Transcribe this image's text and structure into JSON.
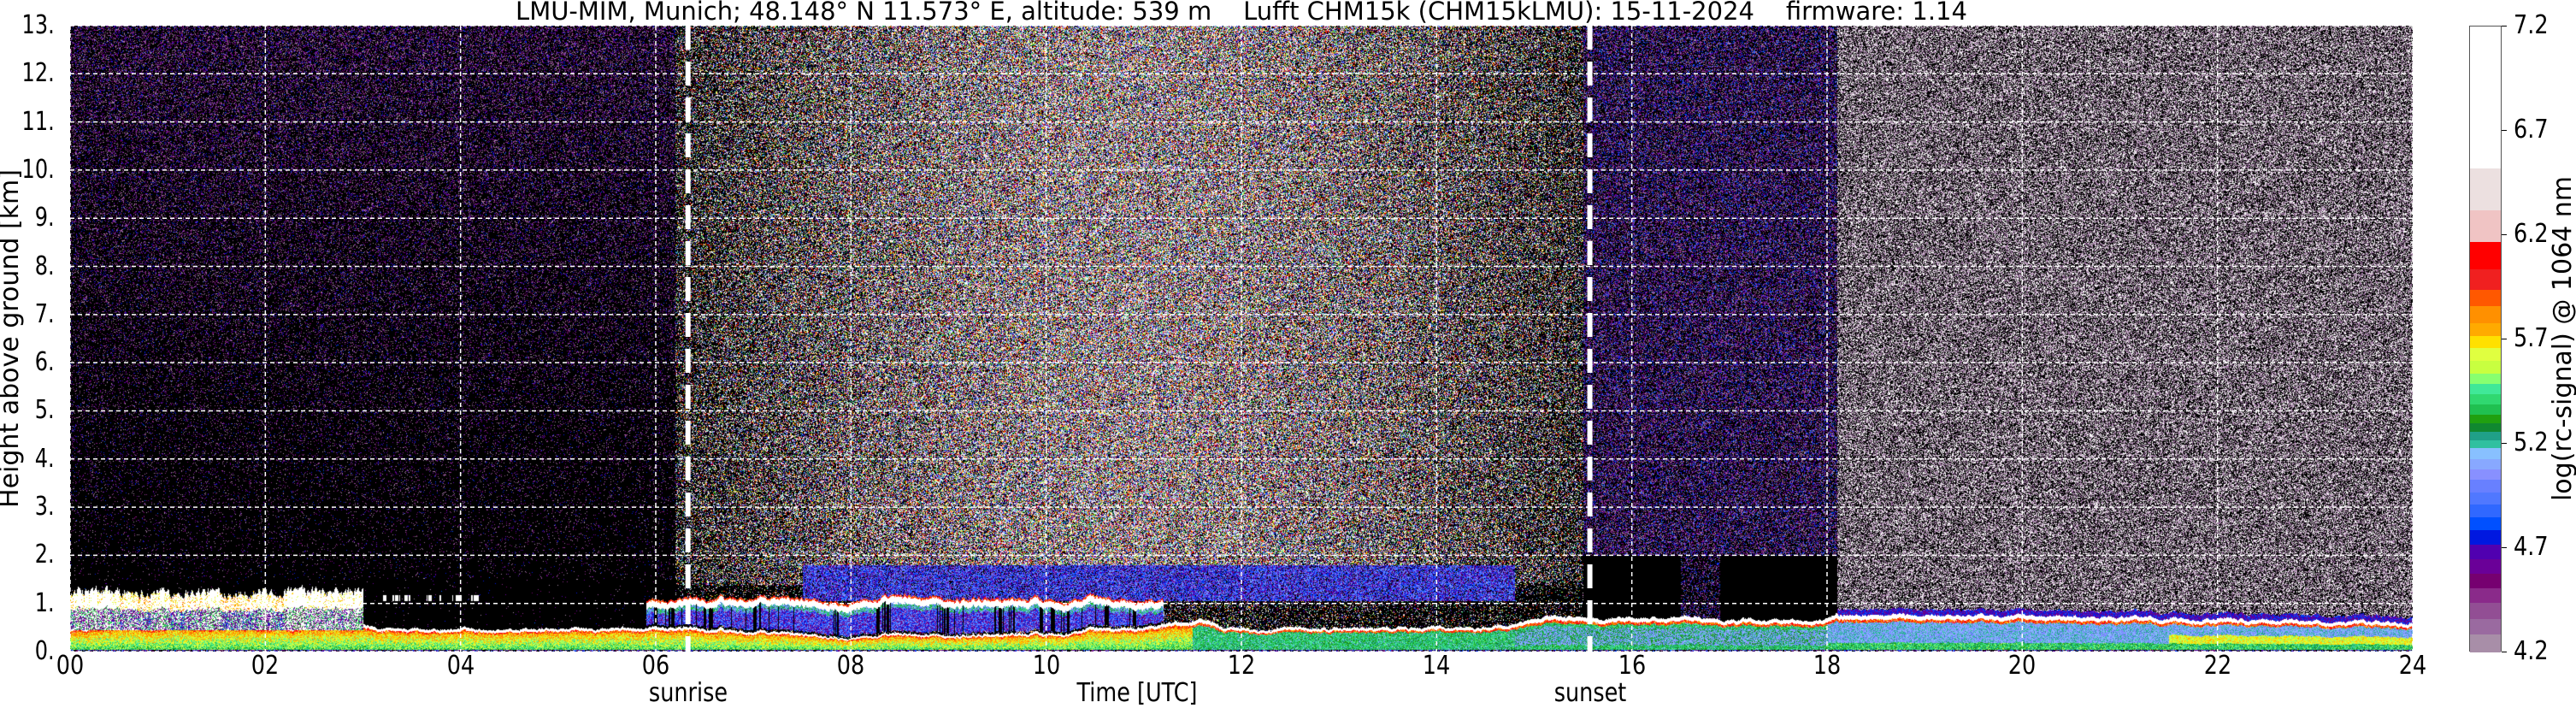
{
  "chart_data": {
    "type": "heatmap",
    "title": "LMU-MIM, Munich; 48.148° N 11.573° E, altitude: 539 m    Lufft CHM15k (CHM15kLMU): 15-11-2024    firmware: 1.14",
    "xlabel": "Time [UTC]",
    "ylabel": "Height above ground [km]",
    "xlim": [
      0,
      24
    ],
    "ylim": [
      0,
      13
    ],
    "xticks": [
      0,
      2,
      4,
      6,
      8,
      10,
      12,
      14,
      16,
      18,
      20,
      22,
      24
    ],
    "xtick_labels": [
      "00",
      "02",
      "04",
      "06",
      "08",
      "10",
      "12",
      "14",
      "16",
      "18",
      "20",
      "22",
      "24"
    ],
    "yticks": [
      0,
      1,
      2,
      3,
      4,
      5,
      6,
      7,
      8,
      9,
      10,
      11,
      12,
      13
    ],
    "ytick_labels": [
      "0.",
      "1.",
      "2.",
      "3.",
      "4.",
      "5.",
      "6.",
      "7.",
      "8.",
      "9.",
      "10.",
      "11.",
      "12.",
      "13."
    ],
    "grid": true,
    "annotations": [
      {
        "label": "sunrise",
        "time": 6.33
      },
      {
        "label": "sunset",
        "time": 15.57
      }
    ],
    "colorbar": {
      "label": "log(rc-signal) @ 1064 nm",
      "range": [
        4.2,
        7.2
      ],
      "ticks": [
        "4.2",
        "4.7",
        "5.2",
        "5.7",
        "6.2",
        "6.7",
        "7.2"
      ],
      "levels": [
        4.2,
        4.29,
        4.36,
        4.44,
        4.51,
        4.58,
        4.65,
        4.72,
        4.79,
        4.85,
        4.91,
        4.97,
        5.03,
        5.08,
        5.13,
        5.18,
        5.22,
        5.26,
        5.3,
        5.34,
        5.39,
        5.44,
        5.49,
        5.54,
        5.6,
        5.66,
        5.72,
        5.78,
        5.86,
        5.94,
        6.04,
        6.17,
        6.32,
        6.52,
        7.2
      ],
      "colors": [
        "#a88ea8",
        "#9a6aa0",
        "#924e94",
        "#8a2a8a",
        "#760070",
        "#6a0098",
        "#5000b0",
        "#0018e0",
        "#0050ff",
        "#3068ff",
        "#5078ff",
        "#6880ff",
        "#8890ff",
        "#88a8ff",
        "#88c0ff",
        "#30c0a0",
        "#20a088",
        "#108830",
        "#20a010",
        "#20c050",
        "#30d870",
        "#40e898",
        "#88ff70",
        "#c8ff40",
        "#e0ff40",
        "#ffe000",
        "#ffaa00",
        "#ff9000",
        "#ff5800",
        "#f02020",
        "#ff0000",
        "#f0c4c4",
        "#ece0e0",
        "#ffffff"
      ]
    },
    "boundary_layer_top_km": {
      "time": [
        0,
        1,
        2,
        3,
        3.5,
        5.7,
        6,
        7,
        8,
        9,
        10,
        11,
        11.6,
        12,
        13,
        14,
        14.8,
        15,
        16,
        16.5,
        17,
        18,
        18.1,
        20,
        22,
        24
      ],
      "height": [
        0.5,
        0.55,
        0.5,
        0.55,
        0.48,
        0.48,
        0.55,
        0.42,
        0.35,
        0.35,
        0.4,
        0.55,
        0.7,
        0.45,
        0.5,
        0.5,
        0.55,
        0.72,
        0.72,
        0.72,
        0.68,
        0.65,
        0.78,
        0.75,
        0.7,
        0.6
      ]
    },
    "cloud_layers_km": [
      {
        "start": 0.0,
        "end": 3.0,
        "base": 0.45,
        "top": 1.4
      },
      {
        "start": 3.2,
        "end": 4.2,
        "base": 1.05,
        "top": 1.18
      },
      {
        "start": 5.9,
        "end": 11.2,
        "base": 0.95,
        "top": 1.12
      }
    ]
  }
}
